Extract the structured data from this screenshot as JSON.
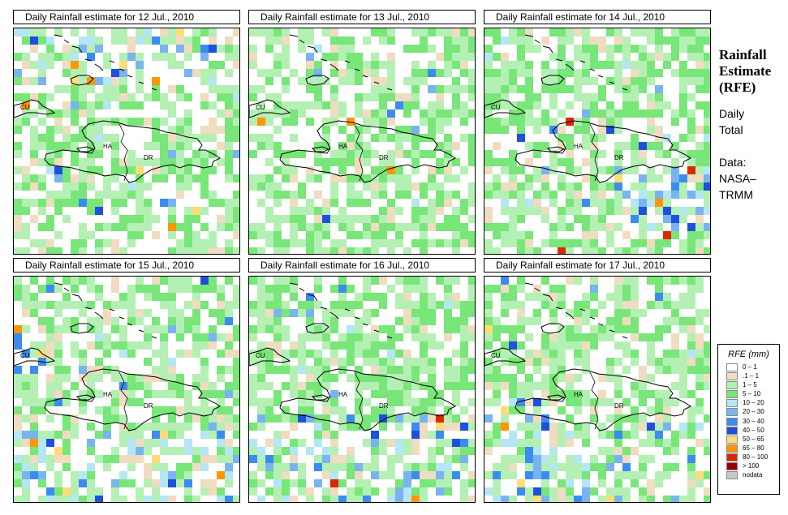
{
  "side": {
    "title_line1": "Rainfall",
    "title_line2": "Estimate",
    "title_line3": "(RFE)",
    "sub1_line1": "Daily",
    "sub1_line2": "Total",
    "sub2_line1": "Data:",
    "sub2_line2": "NASA–",
    "sub2_line3": "TRMM"
  },
  "map_labels": {
    "cuba": "CU",
    "haiti": "HA",
    "dr": "DR"
  },
  "panels": [
    {
      "title": "Daily Rainfall estimate for  12 Jul., 2010",
      "heavy_zone": "north"
    },
    {
      "title": "Daily Rainfall estimate for  13 Jul., 2010",
      "heavy_zone": "light"
    },
    {
      "title": "Daily Rainfall estimate for  14 Jul., 2010",
      "heavy_zone": "southeast"
    },
    {
      "title": "Daily Rainfall estimate for  15 Jul., 2010",
      "heavy_zone": "southwest"
    },
    {
      "title": "Daily Rainfall estimate for  16 Jul., 2010",
      "heavy_zone": "south"
    },
    {
      "title": "Daily Rainfall estimate for  17 Jul., 2010",
      "heavy_zone": "westsouth"
    }
  ],
  "legend": {
    "title": "RFE (mm)",
    "items": [
      {
        "label": "0 – 1",
        "color": "#ffffff"
      },
      {
        "label": ".1 – 1",
        "color": "#f0dcc0"
      },
      {
        "label": "1 – 5",
        "color": "#b4f0b4"
      },
      {
        "label": "5 – 10",
        "color": "#78e678"
      },
      {
        "label": "10 – 20",
        "color": "#b4e6f5"
      },
      {
        "label": "20 – 30",
        "color": "#78b4f0"
      },
      {
        "label": "30 – 40",
        "color": "#3c8cf0"
      },
      {
        "label": "40 – 50",
        "color": "#1e50dc"
      },
      {
        "label": "50 – 65",
        "color": "#ffdc78"
      },
      {
        "label": "65 – 80",
        "color": "#ff9600"
      },
      {
        "label": "80 – 100",
        "color": "#dc2800"
      },
      {
        "label": "> 100",
        "color": "#960000"
      },
      {
        "label": "nodata",
        "color": "#c8c8c8"
      }
    ]
  }
}
